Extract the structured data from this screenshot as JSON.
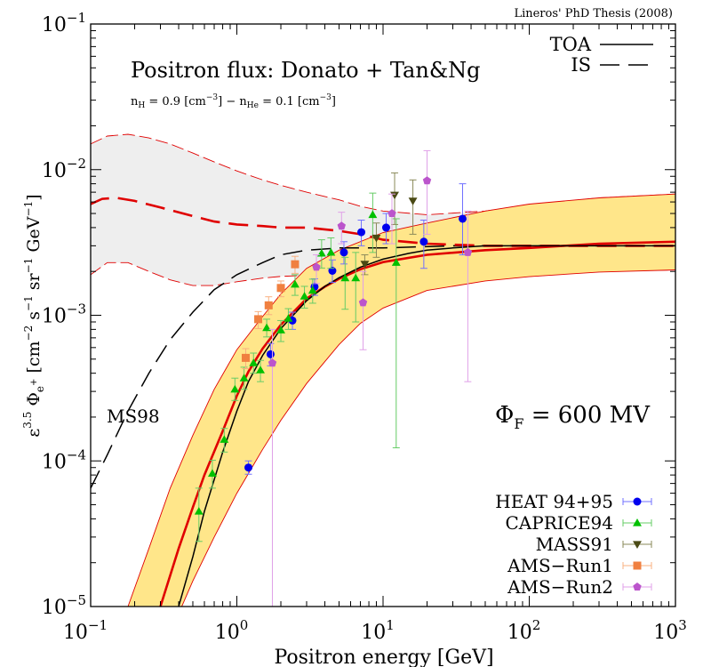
{
  "chart_data": {
    "type": "scatter",
    "credit": "Lineros' PhD Thesis (2008)",
    "title": "Positron flux: Donato + Tan&Ng",
    "subtitle": "nH = 0.9 [cm−3]  −  nHe = 0.1 [cm−3]",
    "xlabel": "Positron energy [GeV]",
    "ylabel": "ε^3.5 Φe+ [cm−2 s−1 sr−1 GeV−1]",
    "xscale": "log",
    "yscale": "log",
    "xlim": [
      0.1,
      1000
    ],
    "ylim": [
      1e-05,
      0.1
    ],
    "x_ticks": [
      {
        "value": 0.1,
        "base": "10",
        "exp": "−1"
      },
      {
        "value": 1,
        "base": "10",
        "exp": "0"
      },
      {
        "value": 10,
        "base": "10",
        "exp": "1"
      },
      {
        "value": 100,
        "base": "10",
        "exp": "2"
      },
      {
        "value": 1000,
        "base": "10",
        "exp": "3"
      }
    ],
    "y_ticks": [
      {
        "value": 1e-05,
        "base": "10",
        "exp": "−5"
      },
      {
        "value": 0.0001,
        "base": "10",
        "exp": "−4"
      },
      {
        "value": 0.001,
        "base": "10",
        "exp": "−3"
      },
      {
        "value": 0.01,
        "base": "10",
        "exp": "−2"
      },
      {
        "value": 0.1,
        "base": "10",
        "exp": "−1"
      }
    ],
    "annotations": {
      "phi_f": "ΦF = 600 MV",
      "ms98": "MS98"
    },
    "line_legend": [
      {
        "name": "TOA",
        "style": "solid"
      },
      {
        "name": "IS",
        "style": "dashed"
      }
    ],
    "legend_placement": "bottom-right",
    "curves": {
      "toa": {
        "color": "#000000",
        "points": [
          [
            0.4,
            1e-05
          ],
          [
            0.5,
            2.2e-05
          ],
          [
            0.6,
            4.5e-05
          ],
          [
            0.8,
            0.000115
          ],
          [
            1.0,
            0.00022
          ],
          [
            1.2,
            0.00035
          ],
          [
            1.5,
            0.00053
          ],
          [
            2,
            0.00081
          ],
          [
            3,
            0.00126
          ],
          [
            4,
            0.00158
          ],
          [
            5,
            0.00181
          ],
          [
            7,
            0.00214
          ],
          [
            10,
            0.00243
          ],
          [
            15,
            0.00266
          ],
          [
            20,
            0.0028
          ],
          [
            30,
            0.0029
          ],
          [
            50,
            0.003
          ],
          [
            100,
            0.003
          ],
          [
            300,
            0.003
          ],
          [
            1000,
            0.003
          ]
        ]
      },
      "is_black": {
        "color": "#000000",
        "points": [
          [
            0.1,
            6.5e-05
          ],
          [
            0.13,
            0.00011
          ],
          [
            0.18,
            0.00022
          ],
          [
            0.25,
            0.0004
          ],
          [
            0.35,
            0.00068
          ],
          [
            0.5,
            0.00105
          ],
          [
            0.7,
            0.0015
          ],
          [
            1,
            0.0019
          ],
          [
            1.5,
            0.0023
          ],
          [
            2,
            0.0026
          ],
          [
            3,
            0.0028
          ],
          [
            5,
            0.0029
          ],
          [
            10,
            0.0029
          ],
          [
            30,
            0.003
          ],
          [
            100,
            0.003
          ],
          [
            1000,
            0.003
          ]
        ]
      },
      "toa_red": {
        "color": "#e00000",
        "points": [
          [
            0.3,
            1e-05
          ],
          [
            0.4,
            2.5e-05
          ],
          [
            0.5,
            4.8e-05
          ],
          [
            0.6,
            8e-05
          ],
          [
            0.8,
            0.00016
          ],
          [
            1,
            0.00028
          ],
          [
            1.2,
            0.00041
          ],
          [
            1.5,
            0.00059
          ],
          [
            2,
            0.00086
          ],
          [
            3,
            0.0013
          ],
          [
            4,
            0.00157
          ],
          [
            5,
            0.00178
          ],
          [
            7,
            0.00207
          ],
          [
            10,
            0.00232
          ],
          [
            20,
            0.0026
          ],
          [
            50,
            0.0028
          ],
          [
            100,
            0.0029
          ],
          [
            300,
            0.0031
          ],
          [
            1000,
            0.0032
          ]
        ]
      },
      "is_red": {
        "color": "#e00000",
        "points": [
          [
            0.1,
            0.0058
          ],
          [
            0.12,
            0.0063
          ],
          [
            0.15,
            0.0064
          ],
          [
            0.2,
            0.0061
          ],
          [
            0.3,
            0.0055
          ],
          [
            0.5,
            0.0048
          ],
          [
            0.7,
            0.0044
          ],
          [
            1,
            0.0042
          ],
          [
            1.5,
            0.0041
          ],
          [
            2,
            0.004
          ],
          [
            3,
            0.004
          ],
          [
            5,
            0.0038
          ],
          [
            7,
            0.0036
          ],
          [
            10,
            0.0033
          ],
          [
            20,
            0.0031
          ],
          [
            50,
            0.003
          ],
          [
            100,
            0.003
          ],
          [
            1000,
            0.003
          ]
        ]
      },
      "band_toa": {
        "color": "#ffe68a",
        "edge": "#e00000",
        "upper": [
          [
            0.18,
            1e-05
          ],
          [
            0.25,
            2.5e-05
          ],
          [
            0.35,
            6.5e-05
          ],
          [
            0.5,
            0.00015
          ],
          [
            0.7,
            0.00031
          ],
          [
            1,
            0.00058
          ],
          [
            1.5,
            0.00098
          ],
          [
            2,
            0.0014
          ],
          [
            3,
            0.0021
          ],
          [
            5,
            0.0028
          ],
          [
            10,
            0.0037
          ],
          [
            20,
            0.0043
          ],
          [
            50,
            0.0052
          ],
          [
            100,
            0.0058
          ],
          [
            300,
            0.0064
          ],
          [
            1000,
            0.0068
          ]
        ],
        "lower": [
          [
            0.42,
            1e-05
          ],
          [
            0.5,
            1.5e-05
          ],
          [
            0.7,
            3e-05
          ],
          [
            1,
            6e-05
          ],
          [
            1.5,
            0.00012
          ],
          [
            2,
            0.00019
          ],
          [
            3,
            0.00034
          ],
          [
            5,
            0.00063
          ],
          [
            7,
            0.00088
          ],
          [
            10,
            0.00112
          ],
          [
            20,
            0.00148
          ],
          [
            50,
            0.00172
          ],
          [
            100,
            0.00184
          ],
          [
            300,
            0.00198
          ],
          [
            1000,
            0.00205
          ]
        ]
      },
      "band_is": {
        "color": "#eeeeee",
        "edge": "#e00000",
        "upper": [
          [
            0.1,
            0.015
          ],
          [
            0.13,
            0.017
          ],
          [
            0.18,
            0.0175
          ],
          [
            0.25,
            0.0165
          ],
          [
            0.35,
            0.015
          ],
          [
            0.5,
            0.013
          ],
          [
            0.7,
            0.0113
          ],
          [
            1,
            0.0098
          ],
          [
            1.5,
            0.0085
          ],
          [
            2,
            0.0078
          ],
          [
            3,
            0.007
          ],
          [
            5,
            0.0062
          ],
          [
            7,
            0.0056
          ],
          [
            10,
            0.0052
          ],
          [
            20,
            0.0049
          ],
          [
            50,
            0.0052
          ],
          [
            100,
            0.0057
          ],
          [
            300,
            0.0064
          ],
          [
            1000,
            0.0068
          ]
        ],
        "lower": [
          [
            0.1,
            0.0019
          ],
          [
            0.13,
            0.0023
          ],
          [
            0.18,
            0.0023
          ],
          [
            0.25,
            0.002
          ],
          [
            0.35,
            0.00175
          ],
          [
            0.5,
            0.0016
          ],
          [
            0.7,
            0.0016
          ],
          [
            1,
            0.0017
          ],
          [
            1.5,
            0.0018
          ],
          [
            2,
            0.00185
          ],
          [
            3,
            0.00188
          ],
          [
            5,
            0.0019
          ],
          [
            7,
            0.0019
          ],
          [
            10,
            0.0019
          ],
          [
            20,
            0.00175
          ],
          [
            50,
            0.00175
          ],
          [
            100,
            0.00185
          ],
          [
            300,
            0.002
          ],
          [
            1000,
            0.00205
          ]
        ]
      }
    },
    "series": [
      {
        "name": "HEAT 94+95",
        "color": "#0000ee",
        "bar_color": "#7070ff",
        "marker": "circle",
        "points": [
          [
            1.2,
            9e-05,
            8.1e-05,
            0.0001
          ],
          [
            1.7,
            0.00054,
            0.00045,
            0.00064
          ],
          [
            2.4,
            0.00092,
            0.0008,
            0.00105
          ],
          [
            3.4,
            0.00157,
            0.00137,
            0.00178
          ],
          [
            4.5,
            0.00202,
            0.00168,
            0.0024
          ],
          [
            5.4,
            0.0027,
            0.00225,
            0.0032
          ],
          [
            7.1,
            0.00372,
            0.003,
            0.0045
          ],
          [
            10.5,
            0.004,
            0.0031,
            0.005
          ],
          [
            19,
            0.0032,
            0.0021,
            0.0045
          ],
          [
            35,
            0.0046,
            0.0026,
            0.008
          ]
        ]
      },
      {
        "name": "CAPRICE94",
        "color": "#00c000",
        "bar_color": "#66cc66",
        "marker": "triangle",
        "points": [
          [
            0.55,
            4.5e-05,
            2.8e-05,
            6.5e-05
          ],
          [
            0.68,
            8.2e-05,
            6.5e-05,
            0.000101
          ],
          [
            0.82,
            0.00014,
            0.000115,
            0.000167
          ],
          [
            0.97,
            0.00031,
            0.00026,
            0.00037
          ],
          [
            1.12,
            0.00037,
            0.00031,
            0.00044
          ],
          [
            1.3,
            0.00047,
            0.0004,
            0.00055
          ],
          [
            1.45,
            0.00042,
            0.00035,
            0.00049
          ],
          [
            1.6,
            0.00082,
            0.00071,
            0.00094
          ],
          [
            2.0,
            0.00079,
            0.00066,
            0.00092
          ],
          [
            2.25,
            0.00095,
            0.0008,
            0.00111
          ],
          [
            2.5,
            0.00163,
            0.00137,
            0.0019
          ],
          [
            2.9,
            0.00135,
            0.00112,
            0.00158
          ],
          [
            3.3,
            0.00148,
            0.00121,
            0.00177
          ],
          [
            3.8,
            0.00266,
            0.00211,
            0.0033
          ],
          [
            4.4,
            0.0027,
            0.0021,
            0.0034
          ],
          [
            5.5,
            0.0018,
            0.0011,
            0.0025
          ],
          [
            6.5,
            0.0018,
            0.0009,
            0.0027
          ],
          [
            8.5,
            0.0049,
            0.0027,
            0.0069
          ],
          [
            12.3,
            0.0023,
            0.000123,
            0.0046
          ]
        ]
      },
      {
        "name": "MASS91",
        "color": "#4a4a14",
        "bar_color": "#8a8a5a",
        "marker": "triangle-down",
        "points": [
          [
            7.5,
            0.00225,
            0.0019,
            0.0026
          ],
          [
            9,
            0.0034,
            0.0025,
            0.0043
          ],
          [
            12,
            0.0067,
            0.0042,
            0.0095
          ],
          [
            16,
            0.0061,
            0.0036,
            0.0085
          ]
        ]
      },
      {
        "name": "AMS−Run1",
        "color": "#f08040",
        "bar_color": "#f8b080",
        "marker": "square",
        "points": [
          [
            1.15,
            0.00051,
            0.00043,
            0.00059
          ],
          [
            1.4,
            0.00094,
            0.00081,
            0.00106
          ],
          [
            1.65,
            0.00117,
            0.00101,
            0.00134
          ],
          [
            2.0,
            0.00154,
            0.00134,
            0.00172
          ],
          [
            2.5,
            0.00224,
            0.00194,
            0.00254
          ]
        ]
      },
      {
        "name": "AMS−Run2",
        "color": "#bb55cc",
        "bar_color": "#e0a0e8",
        "marker": "pentagon",
        "points": [
          [
            1.75,
            0.00047,
            1e-05,
            0.0008
          ],
          [
            3.5,
            0.00214,
            0.00165,
            0.0026
          ],
          [
            5.2,
            0.0041,
            0.0031,
            0.0051
          ],
          [
            7.3,
            0.00122,
            0.00058,
            0.002
          ],
          [
            11.5,
            0.005,
            0.0031,
            0.0068
          ],
          [
            20,
            0.0084,
            0.0036,
            0.0135
          ],
          [
            38,
            0.0027,
            0.00035,
            0.0052
          ]
        ]
      }
    ]
  }
}
